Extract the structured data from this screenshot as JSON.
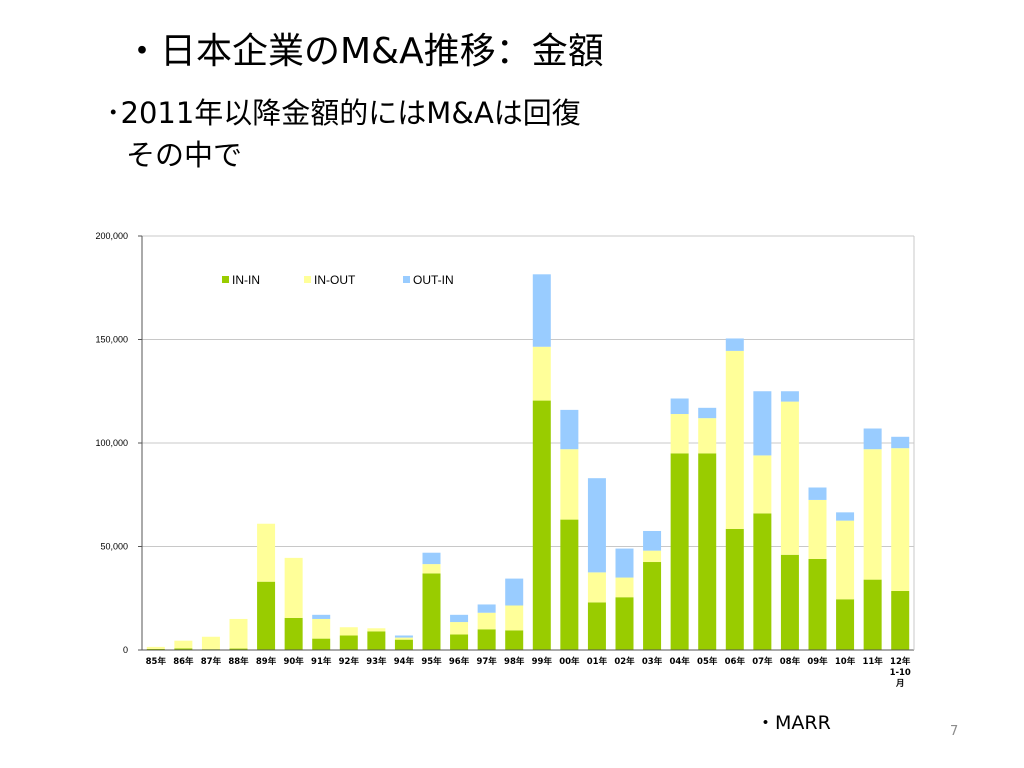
{
  "slide": {
    "title": "・日本企業のM&A推移：金額",
    "bullet_line1": "･2011年以降金額的にはM&Aは回復",
    "bullet_line2": "その中で",
    "source": "・MARR",
    "page_number": "7"
  },
  "chart_data": {
    "type": "bar",
    "stacked": true,
    "categories": [
      "85年",
      "86年",
      "87年",
      "88年",
      "89年",
      "90年",
      "91年",
      "92年",
      "93年",
      "94年",
      "95年",
      "96年",
      "97年",
      "98年",
      "99年",
      "00年",
      "01年",
      "02年",
      "03年",
      "04年",
      "05年",
      "06年",
      "07年",
      "08年",
      "09年",
      "10年",
      "11年",
      "12年 1-10 月"
    ],
    "series": [
      {
        "name": "IN-IN",
        "color": "#99cc00",
        "values": [
          500,
          800,
          400,
          700,
          33000,
          15500,
          5500,
          7000,
          9000,
          5000,
          37000,
          7500,
          10000,
          9500,
          120500,
          63000,
          23000,
          25500,
          42500,
          95000,
          95000,
          58500,
          66000,
          46000,
          44000,
          24500,
          34000,
          28500
        ]
      },
      {
        "name": "IN-OUT",
        "color": "#ffff99",
        "values": [
          1000,
          3700,
          6000,
          14300,
          28000,
          29000,
          9500,
          4000,
          1500,
          1000,
          4500,
          6000,
          8000,
          12000,
          26000,
          34000,
          14500,
          9500,
          5500,
          19000,
          17000,
          86000,
          28000,
          74000,
          28500,
          38000,
          63000,
          69000
        ]
      },
      {
        "name": "OUT-IN",
        "color": "#99ccff",
        "values": [
          0,
          0,
          0,
          0,
          0,
          0,
          2000,
          0,
          0,
          1000,
          5500,
          3500,
          4000,
          13000,
          35000,
          19000,
          45500,
          14000,
          9500,
          7500,
          5000,
          6000,
          31000,
          5000,
          6000,
          4000,
          10000,
          5500
        ]
      }
    ],
    "y_ticks": [
      "200,000",
      "150,000",
      "100,000",
      "50,000",
      "0"
    ],
    "ylim": [
      0,
      200000
    ],
    "grid": true,
    "legend_position": "top-left"
  }
}
